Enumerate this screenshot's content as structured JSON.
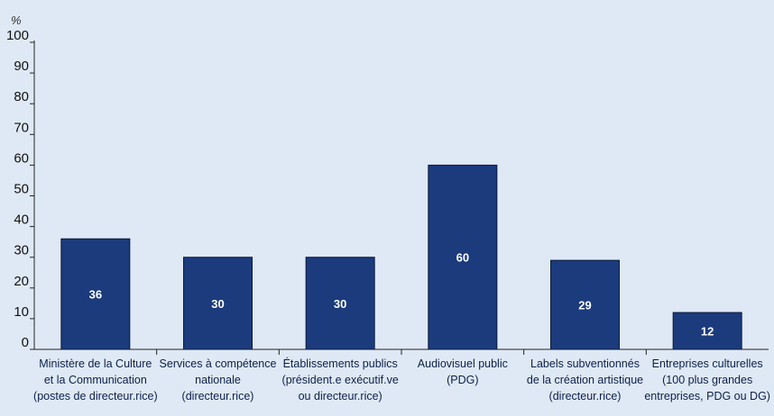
{
  "chart_data": {
    "type": "bar",
    "ylabel": "%",
    "ylim": [
      0,
      100
    ],
    "yticks": [
      0,
      10,
      20,
      30,
      40,
      50,
      60,
      70,
      80,
      90,
      100
    ],
    "grid": false,
    "bar_color": "#1b3b7d",
    "categories": [
      [
        "Ministère de la Culture",
        "et la Communication",
        "(postes de directeur.rice)"
      ],
      [
        "Services à compétence",
        "nationale",
        "(directeur.rice)"
      ],
      [
        "Établissements publics",
        "(président.e exécutif.ve",
        "ou directeur.rice)"
      ],
      [
        "Audiovisuel public",
        "(PDG)"
      ],
      [
        "Labels subventionnés",
        "de la création artistique",
        "(directeur.rice)"
      ],
      [
        "Entreprises culturelles",
        "(100 plus grandes",
        "entreprises, PDG ou DG)"
      ]
    ],
    "values": [
      36,
      30,
      30,
      60,
      29,
      12
    ]
  }
}
